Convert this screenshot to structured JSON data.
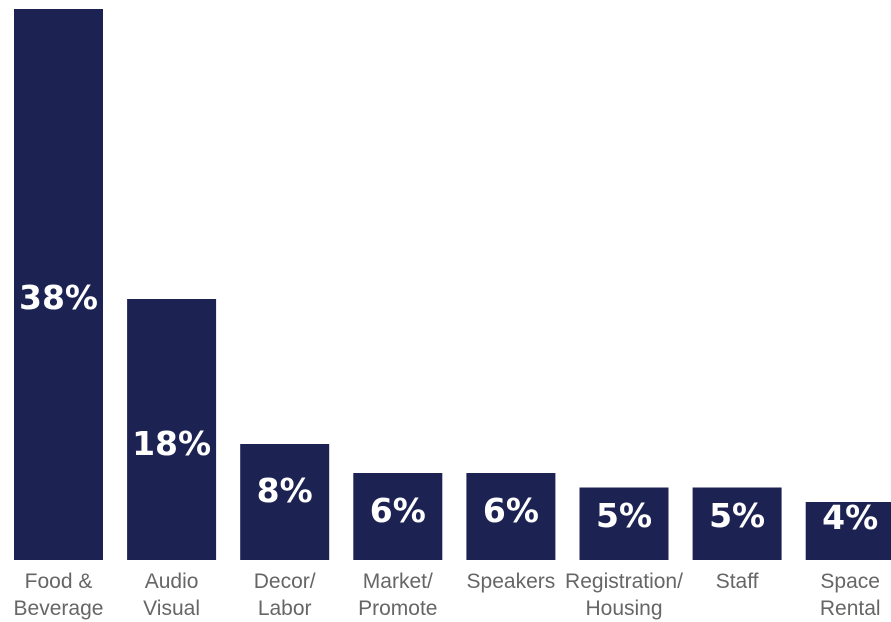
{
  "colors": {
    "bar": "#1c2353",
    "label": "#666666",
    "value_text": "#ffffff",
    "background": "#ffffff"
  },
  "chart_data": {
    "type": "bar",
    "title": "",
    "xlabel": "",
    "ylabel": "",
    "ylim": [
      0,
      38
    ],
    "grid": false,
    "legend": "none",
    "categories": [
      [
        "Food &",
        "Beverage"
      ],
      [
        "Audio",
        "Visual"
      ],
      [
        "Decor/",
        "Labor"
      ],
      [
        "Market/",
        "Promote"
      ],
      [
        "Speakers"
      ],
      [
        "Registration/",
        "Housing"
      ],
      [
        "Staff"
      ],
      [
        "Space",
        "Rental"
      ]
    ],
    "values": [
      38,
      18,
      8,
      6,
      6,
      5,
      5,
      4
    ],
    "value_labels": [
      "38%",
      "18%",
      "8%",
      "6%",
      "6%",
      "5%",
      "5%",
      "4%"
    ]
  }
}
